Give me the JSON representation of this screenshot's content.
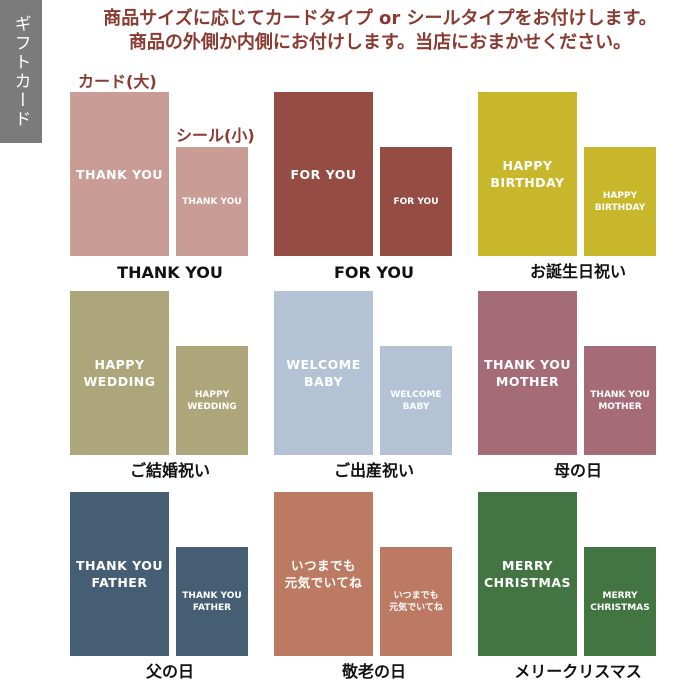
{
  "side_tab": "ギフトカード",
  "header": {
    "line1": "商品サイズに応じてカードタイプ or シールタイプをお付けします。",
    "line2": "商品の外側か内側にお付けします。当店におまかせください。"
  },
  "labels": {
    "card": "カード(大)",
    "seal": "シール(小)"
  },
  "cards": [
    {
      "text": "THANK YOU",
      "name": "THANK YOU",
      "color": "#c99d96"
    },
    {
      "text": "FOR YOU",
      "name": "FOR YOU",
      "color": "#954c43"
    },
    {
      "text": "HAPPY\nBIRTHDAY",
      "name": "お誕生日祝い",
      "color": "#c8b72b"
    },
    {
      "text": "HAPPY\nWEDDING",
      "name": "ご結婚祝い",
      "color": "#aca67a"
    },
    {
      "text": "WELCOME\nBABY",
      "name": "ご出産祝い",
      "color": "#b3c3d5"
    },
    {
      "text": "THANK YOU\nMOTHER",
      "name": "母の日",
      "color": "#a56c77"
    },
    {
      "text": "THANK YOU\nFATHER",
      "name": "父の日",
      "color": "#455e73"
    },
    {
      "text": "いつまでも\n元気でいてね",
      "name": "敬老の日",
      "color": "#bd7a62"
    },
    {
      "text": "MERRY\nCHRISTMAS",
      "name": "メリークリスマス",
      "color": "#437542"
    }
  ]
}
